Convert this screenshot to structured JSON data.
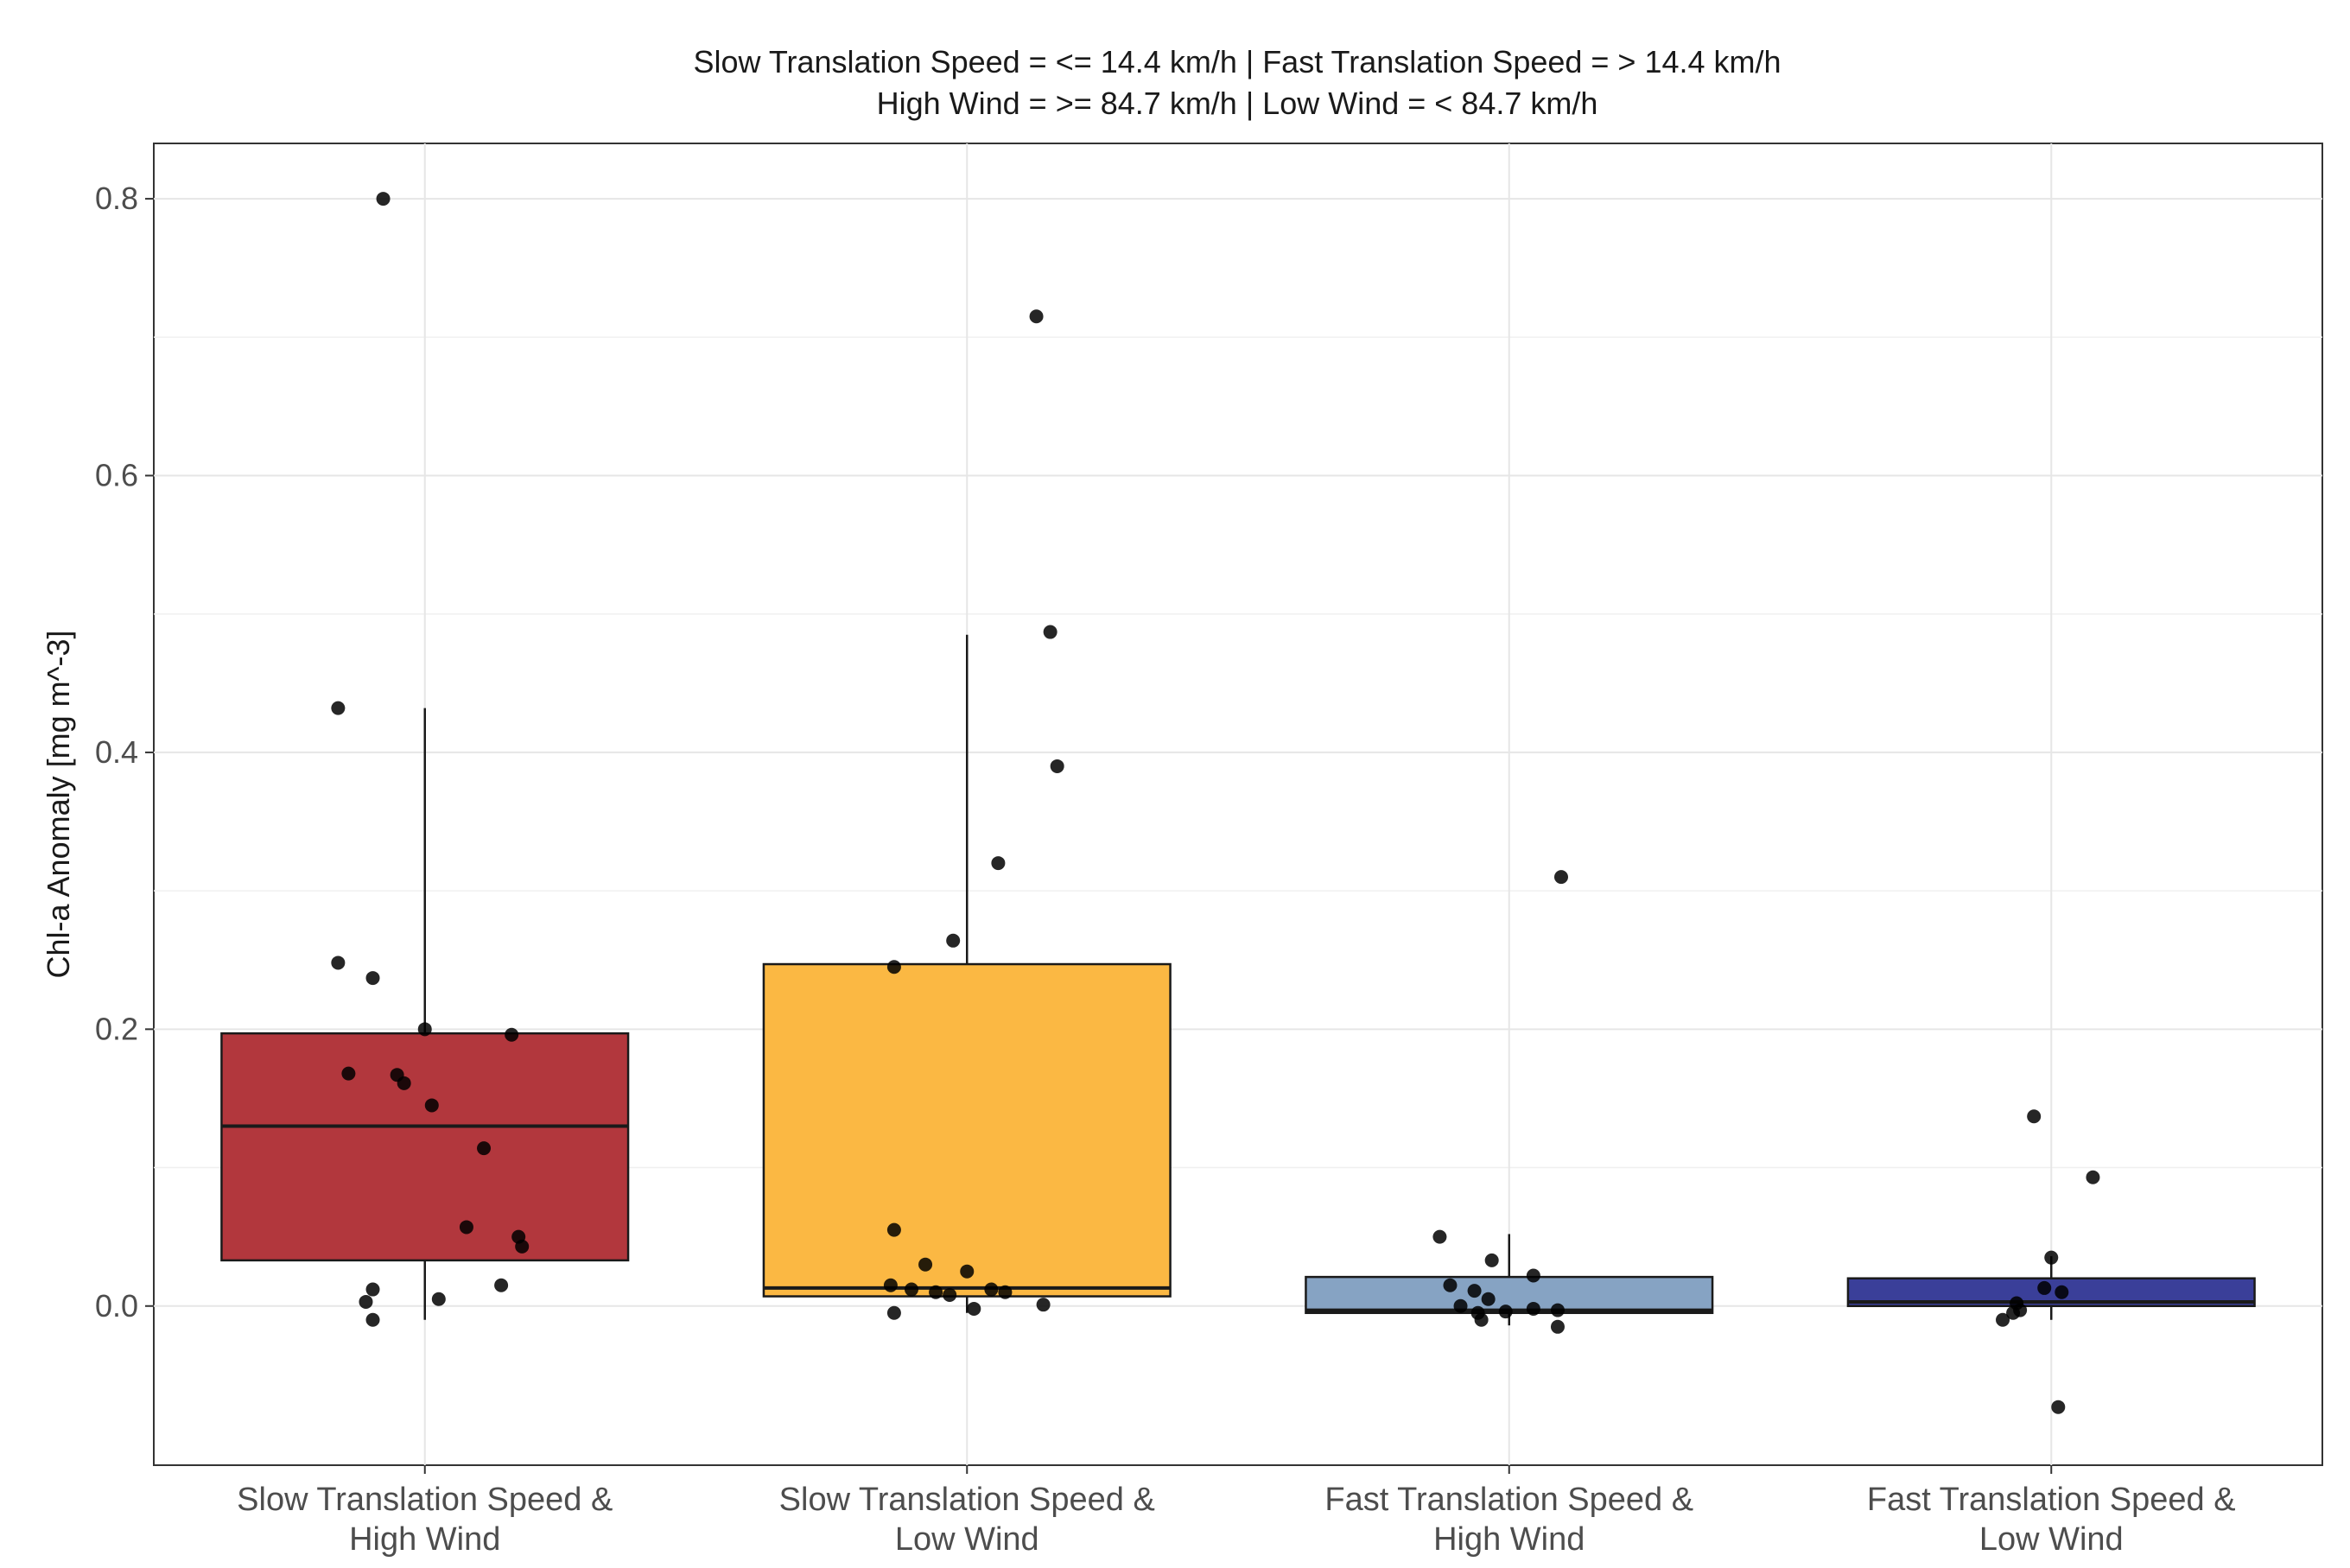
{
  "chart_data": {
    "type": "box",
    "title_lines": [
      "Slow Translation Speed = <= 14.4 km/h | Fast Translation Speed = > 14.4 km/h",
      "High Wind = >= 84.7 km/h | Low Wind = < 84.7 km/h"
    ],
    "ylabel": "Chl-a Anomaly [mg m^-3]",
    "xlabel": "",
    "ylim": [
      -0.115,
      0.84
    ],
    "yticks": [
      0.0,
      0.2,
      0.4,
      0.6,
      0.8
    ],
    "ytick_labels": [
      "0.0",
      "0.2",
      "0.4",
      "0.6",
      "0.8"
    ],
    "grid": true,
    "categories": [
      [
        "Slow Translation Speed &",
        "High Wind"
      ],
      [
        "Slow Translation Speed &",
        "Low Wind"
      ],
      [
        "Fast Translation Speed &",
        "High Wind"
      ],
      [
        "Fast Translation Speed &",
        "Low Wind"
      ]
    ],
    "boxes": [
      {
        "color": "#b2373d",
        "q1": 0.033,
        "median": 0.13,
        "q3": 0.197,
        "whisker_low": -0.01,
        "whisker_high": 0.432
      },
      {
        "color": "#fbb843",
        "q1": 0.007,
        "median": 0.013,
        "q3": 0.247,
        "whisker_low": -0.005,
        "whisker_high": 0.485
      },
      {
        "color": "#86a3c3",
        "q1": -0.005,
        "median": -0.003,
        "q3": 0.021,
        "whisker_low": -0.014,
        "whisker_high": 0.052
      },
      {
        "color": "#3a3f99",
        "q1": 0.0,
        "median": 0.003,
        "q3": 0.02,
        "whisker_low": -0.01,
        "whisker_high": 0.036
      }
    ],
    "points": [
      [
        {
          "x": -0.12,
          "y": 0.8
        },
        {
          "x": -0.25,
          "y": 0.432
        },
        {
          "x": -0.25,
          "y": 0.248
        },
        {
          "x": -0.15,
          "y": 0.237
        },
        {
          "x": 0.0,
          "y": 0.2
        },
        {
          "x": 0.25,
          "y": 0.196
        },
        {
          "x": -0.22,
          "y": 0.168
        },
        {
          "x": -0.08,
          "y": 0.167
        },
        {
          "x": -0.06,
          "y": 0.161
        },
        {
          "x": 0.02,
          "y": 0.145
        },
        {
          "x": 0.17,
          "y": 0.114
        },
        {
          "x": 0.12,
          "y": 0.057
        },
        {
          "x": 0.27,
          "y": 0.05
        },
        {
          "x": 0.28,
          "y": 0.043
        },
        {
          "x": 0.22,
          "y": 0.015
        },
        {
          "x": -0.15,
          "y": 0.012
        },
        {
          "x": -0.17,
          "y": 0.003
        },
        {
          "x": 0.04,
          "y": 0.005
        },
        {
          "x": -0.15,
          "y": -0.01
        }
      ],
      [
        {
          "x": 0.2,
          "y": 0.715
        },
        {
          "x": 0.24,
          "y": 0.487
        },
        {
          "x": 0.26,
          "y": 0.39
        },
        {
          "x": 0.09,
          "y": 0.32
        },
        {
          "x": -0.04,
          "y": 0.264
        },
        {
          "x": -0.21,
          "y": 0.245
        },
        {
          "x": -0.21,
          "y": 0.055
        },
        {
          "x": -0.12,
          "y": 0.03
        },
        {
          "x": 0.0,
          "y": 0.025
        },
        {
          "x": -0.22,
          "y": 0.015
        },
        {
          "x": -0.16,
          "y": 0.012
        },
        {
          "x": -0.09,
          "y": 0.01
        },
        {
          "x": -0.05,
          "y": 0.008
        },
        {
          "x": 0.07,
          "y": 0.012
        },
        {
          "x": 0.11,
          "y": 0.01
        },
        {
          "x": 0.22,
          "y": 0.001
        },
        {
          "x": 0.02,
          "y": -0.002
        },
        {
          "x": -0.21,
          "y": -0.005
        }
      ],
      [
        {
          "x": 0.15,
          "y": 0.31
        },
        {
          "x": -0.2,
          "y": 0.05
        },
        {
          "x": -0.05,
          "y": 0.033
        },
        {
          "x": 0.07,
          "y": 0.022
        },
        {
          "x": -0.17,
          "y": 0.015
        },
        {
          "x": -0.1,
          "y": 0.011
        },
        {
          "x": -0.06,
          "y": 0.005
        },
        {
          "x": -0.14,
          "y": 0.0
        },
        {
          "x": -0.09,
          "y": -0.005
        },
        {
          "x": -0.01,
          "y": -0.004
        },
        {
          "x": 0.07,
          "y": -0.002
        },
        {
          "x": 0.14,
          "y": -0.003
        },
        {
          "x": -0.08,
          "y": -0.01
        },
        {
          "x": 0.14,
          "y": -0.015
        }
      ],
      [
        {
          "x": -0.05,
          "y": 0.137
        },
        {
          "x": 0.12,
          "y": 0.093
        },
        {
          "x": 0.0,
          "y": 0.035
        },
        {
          "x": -0.02,
          "y": 0.013
        },
        {
          "x": 0.03,
          "y": 0.01
        },
        {
          "x": -0.1,
          "y": 0.002
        },
        {
          "x": -0.09,
          "y": -0.003
        },
        {
          "x": -0.11,
          "y": -0.005
        },
        {
          "x": -0.14,
          "y": -0.01
        },
        {
          "x": 0.02,
          "y": -0.073
        }
      ]
    ]
  }
}
